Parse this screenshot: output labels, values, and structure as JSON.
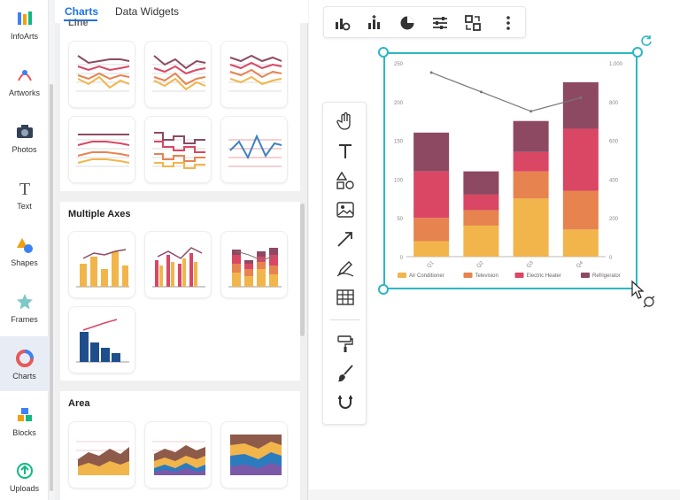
{
  "rail": {
    "items": [
      {
        "label": "InfoArts",
        "icon": "infoarts-icon"
      },
      {
        "label": "Artworks",
        "icon": "artworks-icon"
      },
      {
        "label": "Photos",
        "icon": "camera-icon"
      },
      {
        "label": "Text",
        "icon": "text-icon"
      },
      {
        "label": "Shapes",
        "icon": "shapes-icon"
      },
      {
        "label": "Frames",
        "icon": "star-frame-icon"
      },
      {
        "label": "Charts",
        "icon": "chart-ring-icon"
      },
      {
        "label": "Blocks",
        "icon": "blocks-icon"
      },
      {
        "label": "Uploads",
        "icon": "upload-icon"
      }
    ]
  },
  "panel": {
    "tabs": [
      {
        "label": "Charts"
      },
      {
        "label": "Data Widgets"
      }
    ],
    "sections": [
      {
        "title": "Line"
      },
      {
        "title": "Multiple Axes"
      },
      {
        "title": "Area"
      }
    ]
  },
  "toolbar": {
    "icons": [
      "chart-settings-icon",
      "bar-add-icon",
      "pie-icon",
      "sliders-icon",
      "swap-data-icon",
      "more-vertical-icon"
    ]
  },
  "vtools": {
    "icons": [
      "hand-icon",
      "text-tool-icon",
      "shapes-tool-icon",
      "image-tool-icon",
      "arrow-line-icon",
      "pen-icon",
      "table-icon",
      "paint-roller-icon",
      "brush-icon",
      "magnet-icon"
    ]
  },
  "colors": {
    "accent": "#1a73e8",
    "selection": "#2bb7c4",
    "air_conditioner": "#f2b54b",
    "television": "#e7834f",
    "electric_heater": "#d94764",
    "refrigerator": "#8e4962",
    "line": "#777777"
  },
  "chart_data": {
    "type": "bar",
    "stacked": true,
    "categories": [
      "Q1",
      "Q2",
      "Q3",
      "Q4"
    ],
    "series": [
      {
        "name": "Air Conditioner",
        "values": [
          20,
          40,
          75,
          35
        ]
      },
      {
        "name": "Television",
        "values": [
          30,
          20,
          35,
          50
        ]
      },
      {
        "name": "Electric Heater",
        "values": [
          60,
          20,
          25,
          80
        ]
      },
      {
        "name": "Refrigerator",
        "values": [
          50,
          30,
          40,
          60
        ]
      }
    ],
    "line_series": {
      "values": [
        950,
        850,
        750,
        820
      ]
    },
    "y_ticks": [
      "0",
      "50",
      "100",
      "150",
      "200",
      "250"
    ],
    "y2_ticks": [
      "0",
      "200",
      "400",
      "600",
      "800",
      "1,000"
    ],
    "ylim": [
      0,
      250
    ],
    "y2lim": [
      0,
      1000
    ],
    "legend_position": "bottom",
    "grid": false
  }
}
